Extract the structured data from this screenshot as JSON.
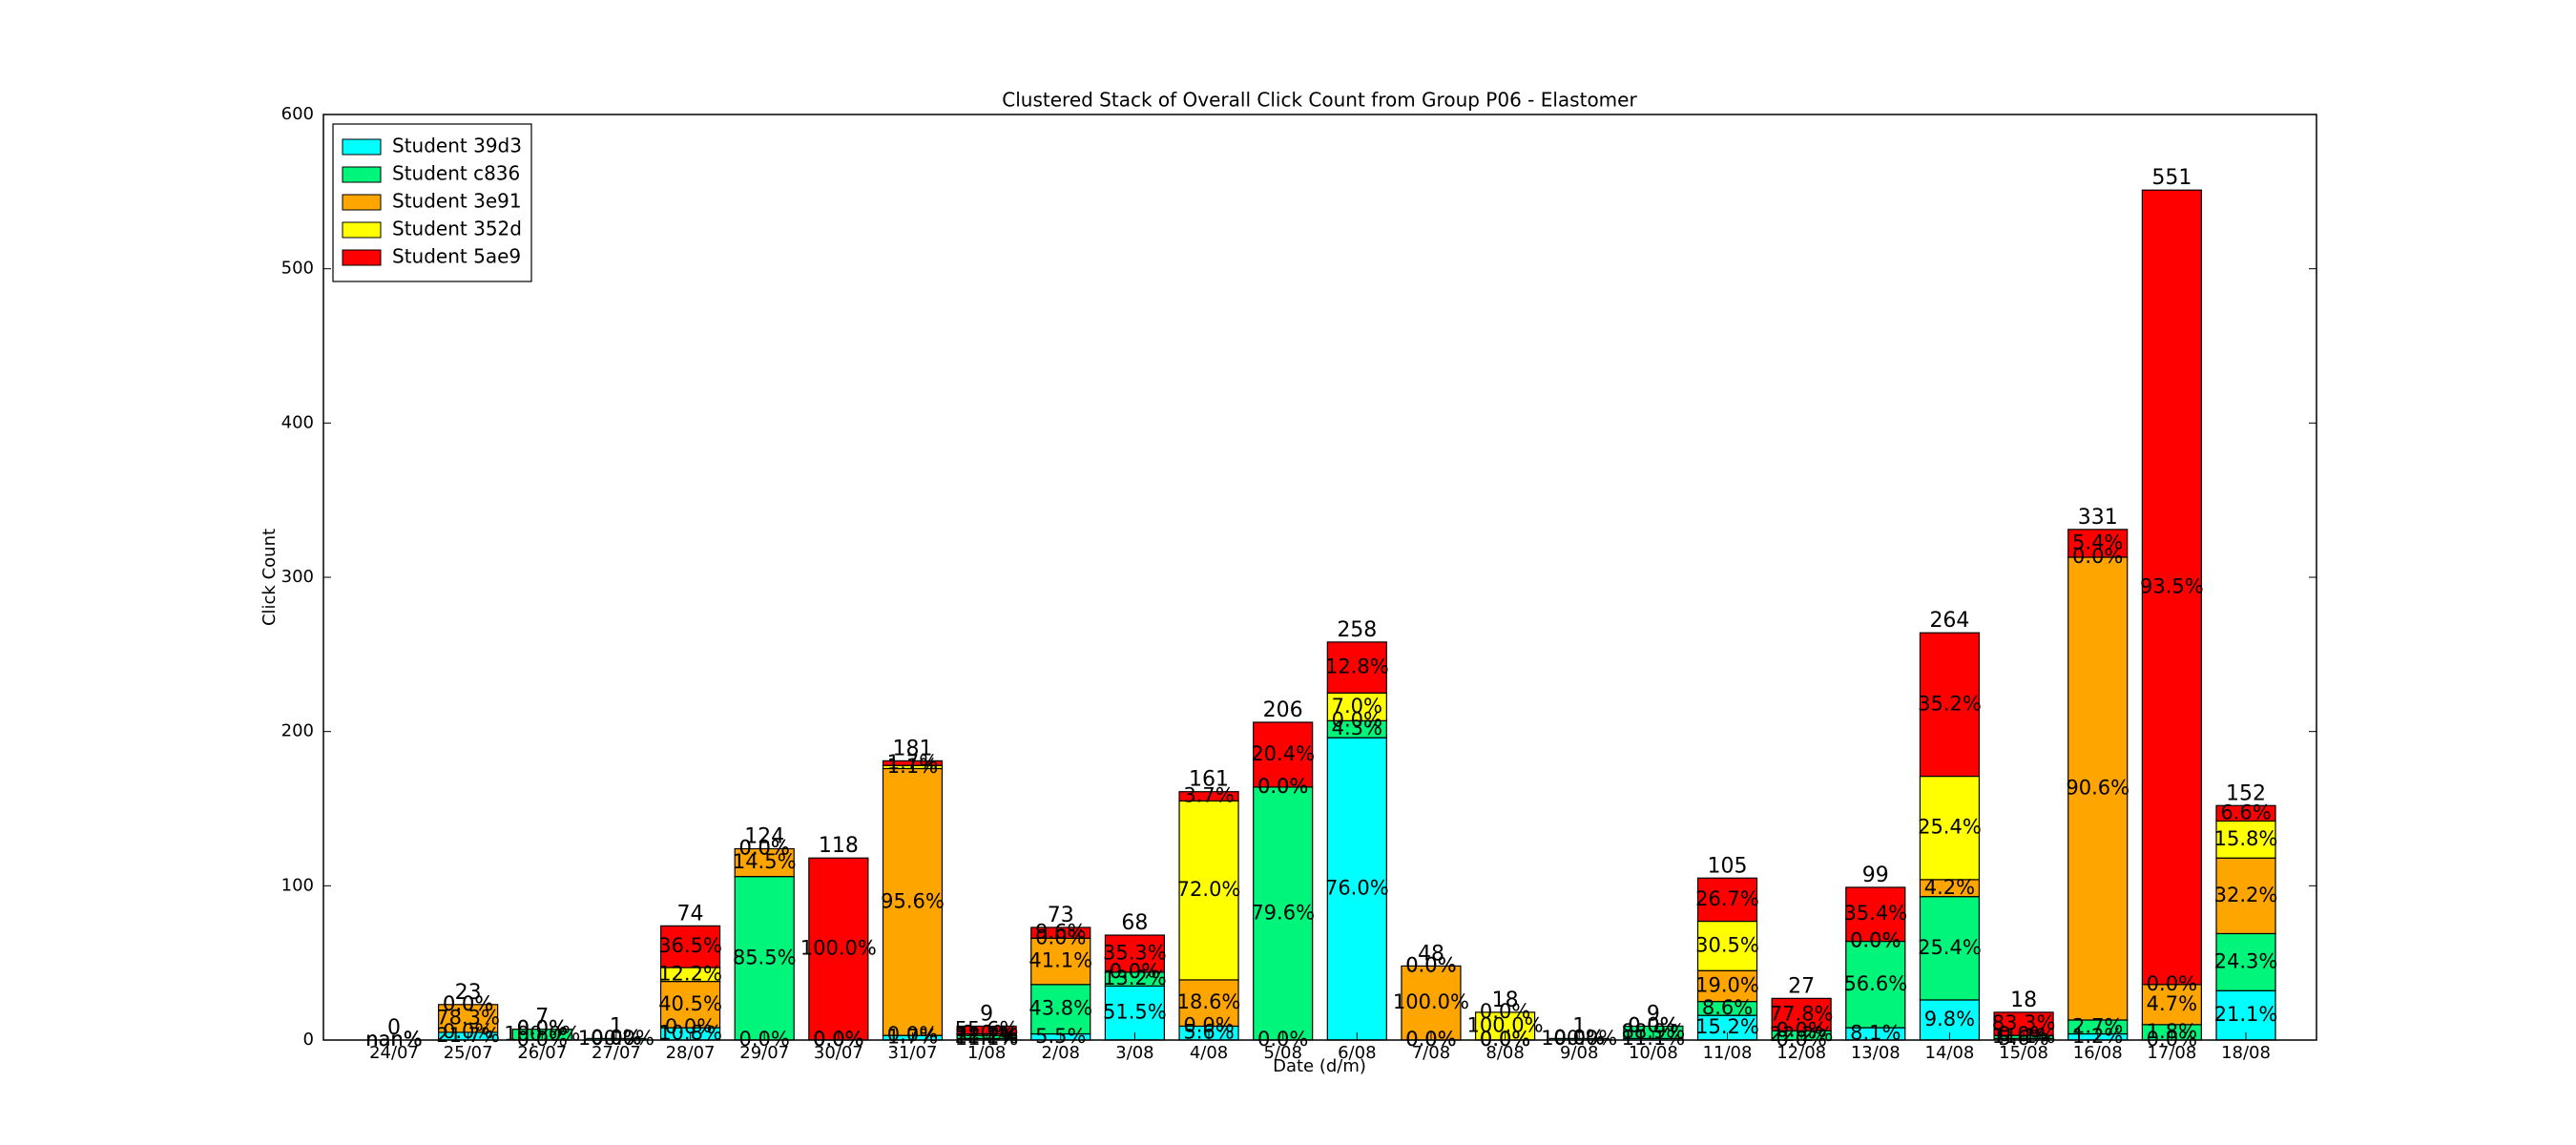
{
  "chart_data": {
    "type": "bar",
    "stacked": true,
    "title": "Clustered Stack of Overall Click Count from Group P06 - Elastomer",
    "xlabel": "Date (d/m)",
    "ylabel": "Click Count",
    "categories": [
      "24/07",
      "25/07",
      "26/07",
      "27/07",
      "28/07",
      "29/07",
      "30/07",
      "31/07",
      "1/08",
      "2/08",
      "3/08",
      "4/08",
      "5/08",
      "6/08",
      "7/08",
      "8/08",
      "9/08",
      "10/08",
      "11/08",
      "12/08",
      "13/08",
      "14/08",
      "15/08",
      "16/08",
      "17/08",
      "18/08"
    ],
    "series": [
      {
        "name": "Student 39d3",
        "color": "#00ffff",
        "values": [
          0,
          5,
          0,
          1,
          8,
          0,
          0,
          3,
          1,
          4,
          35,
          9,
          0,
          196,
          0,
          0,
          1,
          1,
          16,
          0,
          8,
          26,
          1,
          4,
          0,
          32
        ],
        "percent_labels": [
          "nan%",
          "21.7%",
          "0.0%",
          "100.0%",
          "10.8%",
          "0.0%",
          "0.0%",
          "1.7%",
          "11.1%",
          "5.5%",
          "51.5%",
          "5.6%",
          "0.0%",
          "76.0%",
          "0.0%",
          "0.0%",
          "100.0%",
          "11.1%",
          "15.2%",
          "0.0%",
          "8.1%",
          "9.8%",
          "5.6%",
          "1.2%",
          "0.0%",
          "21.1%"
        ]
      },
      {
        "name": "Student c836",
        "color": "#00f57a",
        "values": [
          0,
          0,
          7,
          0,
          0,
          106,
          0,
          0,
          2,
          32,
          9,
          0,
          164,
          11,
          0,
          0,
          0,
          8,
          9,
          6,
          56,
          67,
          2,
          9,
          10,
          37
        ],
        "percent_labels": [
          "nan%",
          "0.0%",
          "100.0%",
          "0.0%",
          "0.0%",
          "85.5%",
          "0.0%",
          "0.0%",
          "22.2%",
          "43.8%",
          "13.2%",
          "0.0%",
          "79.6%",
          "4.3%",
          "0.0%",
          "0.0%",
          "0.0%",
          "88.9%",
          "8.6%",
          "22.2%",
          "56.6%",
          "25.4%",
          "11.1%",
          "2.7%",
          "1.8%",
          "24.3%"
        ]
      },
      {
        "name": "Student 3e91",
        "color": "#ffa500",
        "values": [
          0,
          18,
          0,
          0,
          30,
          18,
          0,
          173,
          1,
          30,
          0,
          30,
          0,
          0,
          48,
          0,
          0,
          0,
          20,
          0,
          0,
          11,
          0,
          300,
          26,
          49
        ],
        "percent_labels": [
          "nan%",
          "78.3%",
          "0.0%",
          "0.0%",
          "40.5%",
          "14.5%",
          "0.0%",
          "95.6%",
          "11.1%",
          "41.1%",
          "0.0%",
          "18.6%",
          "0.0%",
          "0.0%",
          "100.0%",
          "0.0%",
          "0.0%",
          "0.0%",
          "19.0%",
          "0.0%",
          "0.0%",
          "4.2%",
          "0.0%",
          "90.6%",
          "4.7%",
          "32.2%"
        ]
      },
      {
        "name": "Student 352d",
        "color": "#ffff00",
        "values": [
          0,
          0,
          0,
          0,
          9,
          0,
          0,
          2,
          0,
          0,
          0,
          116,
          0,
          18,
          0,
          18,
          0,
          0,
          32,
          0,
          0,
          67,
          0,
          0,
          0,
          24
        ],
        "percent_labels": [
          "nan%",
          "0.0%",
          "0.0%",
          "0.0%",
          "12.2%",
          "0.0%",
          "0.0%",
          "1.1%",
          "0.0%",
          "0.0%",
          "0.0%",
          "72.0%",
          "0.0%",
          "7.0%",
          "0.0%",
          "100.0%",
          "0.0%",
          "0.0%",
          "30.5%",
          "0.0%",
          "0.0%",
          "25.4%",
          "0.0%",
          "0.0%",
          "0.0%",
          "15.8%"
        ]
      },
      {
        "name": "Student 5ae9",
        "color": "#ff0000",
        "values": [
          0,
          0,
          0,
          0,
          27,
          0,
          118,
          3,
          5,
          7,
          24,
          6,
          42,
          33,
          0,
          0,
          0,
          0,
          28,
          21,
          35,
          93,
          15,
          18,
          515,
          10
        ],
        "percent_labels": [
          "nan%",
          "0.0%",
          "0.0%",
          "0.0%",
          "36.5%",
          "0.0%",
          "100.0%",
          "1.7%",
          "55.6%",
          "9.6%",
          "35.3%",
          "3.7%",
          "20.4%",
          "12.8%",
          "0.0%",
          "0.0%",
          "0.0%",
          "0.0%",
          "26.7%",
          "77.8%",
          "35.4%",
          "35.2%",
          "83.3%",
          "5.4%",
          "93.5%",
          "6.6%"
        ]
      }
    ],
    "totals": [
      0,
      23,
      7,
      1,
      74,
      124,
      118,
      181,
      9,
      73,
      68,
      161,
      206,
      258,
      48,
      18,
      1,
      9,
      105,
      27,
      99,
      264,
      18,
      331,
      551,
      152
    ],
    "ylim": [
      0,
      600
    ],
    "yticks": [
      0,
      100,
      200,
      300,
      400,
      500,
      600
    ],
    "legend": "upper left"
  }
}
